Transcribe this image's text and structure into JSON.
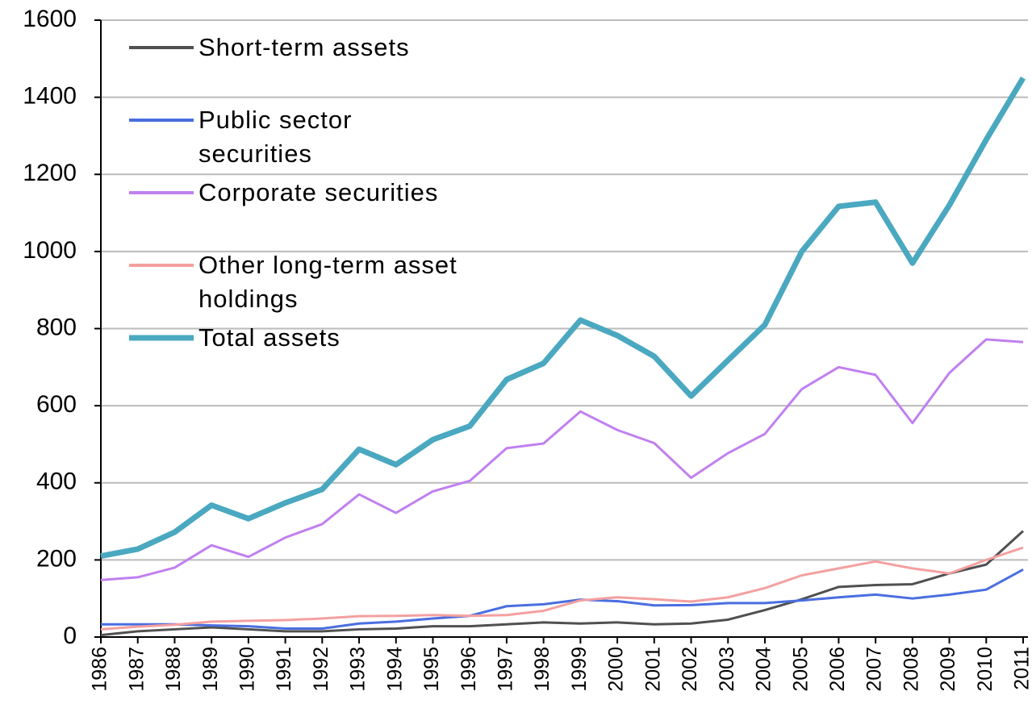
{
  "chart_data": {
    "type": "line",
    "categories": [
      "1986",
      "1987",
      "1988",
      "1989",
      "1990",
      "1991",
      "1992",
      "1993",
      "1994",
      "1995",
      "1996",
      "1997",
      "1998",
      "1999",
      "2000",
      "2001",
      "2002",
      "2003",
      "2004",
      "2005",
      "2006",
      "2007",
      "2008",
      "2009",
      "2010",
      "2011"
    ],
    "series": [
      {
        "name": "Short-term assets",
        "color": "#505050",
        "values": [
          5,
          15,
          20,
          25,
          20,
          15,
          15,
          20,
          22,
          28,
          28,
          33,
          38,
          35,
          38,
          33,
          35,
          45,
          70,
          98,
          130,
          135,
          137,
          165,
          188,
          275
        ]
      },
      {
        "name": "Public sector securities",
        "color": "#4a6ee0",
        "values": [
          33,
          33,
          33,
          30,
          28,
          22,
          22,
          35,
          40,
          48,
          55,
          80,
          85,
          97,
          93,
          82,
          83,
          88,
          88,
          95,
          103,
          110,
          100,
          110,
          123,
          175
        ]
      },
      {
        "name": "Corporate securities",
        "color": "#c080f0",
        "values": [
          148,
          155,
          180,
          238,
          208,
          258,
          293,
          370,
          322,
          378,
          405,
          490,
          502,
          585,
          537,
          503,
          413,
          477,
          527,
          643,
          700,
          680,
          555,
          685,
          772,
          765
        ]
      },
      {
        "name": "Other long-term asset holdings",
        "color": "#f4a0a0",
        "values": [
          20,
          27,
          32,
          40,
          42,
          44,
          48,
          54,
          55,
          57,
          55,
          57,
          68,
          95,
          103,
          98,
          92,
          103,
          127,
          160,
          178,
          196,
          178,
          165,
          200,
          232
        ]
      },
      {
        "name": "Total assets",
        "color": "#4aa8c0",
        "values": [
          210,
          228,
          272,
          342,
          307,
          348,
          383,
          487,
          447,
          512,
          547,
          668,
          710,
          822,
          782,
          728,
          625,
          718,
          810,
          1000,
          1117,
          1128,
          970,
          1120,
          1290,
          1450
        ]
      }
    ],
    "ylim": [
      0,
      1600
    ],
    "yticks": [
      0,
      200,
      400,
      600,
      800,
      1000,
      1200,
      1400,
      1600
    ],
    "grid": true
  }
}
